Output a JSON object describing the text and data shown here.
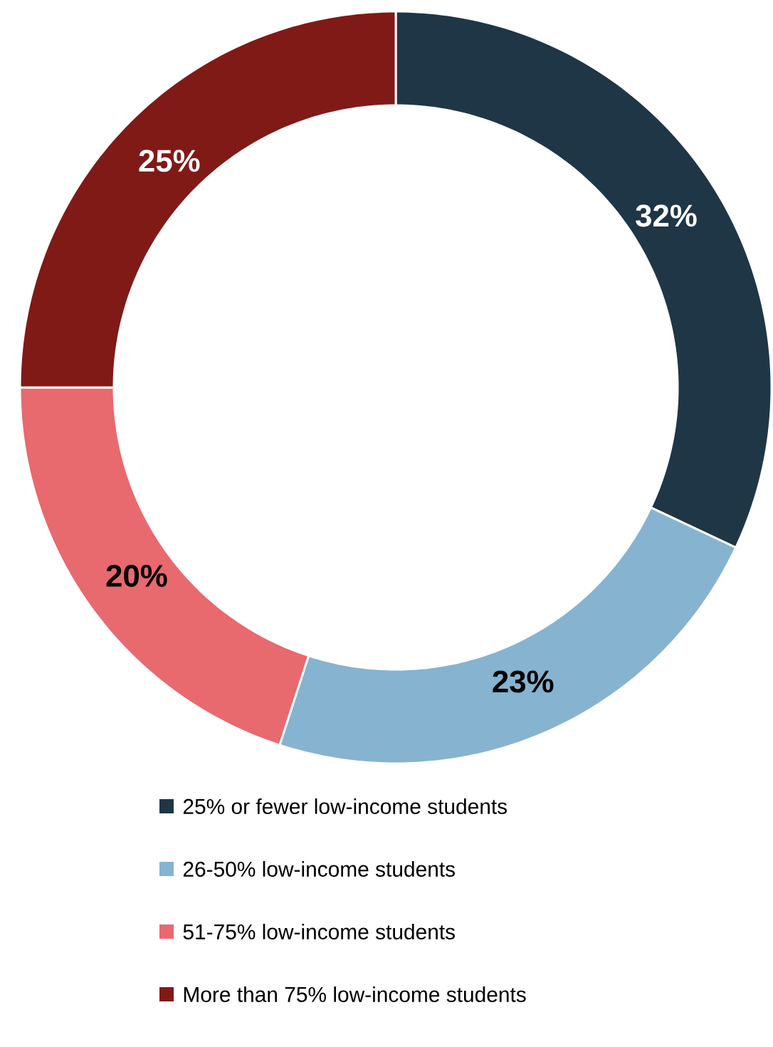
{
  "chart_data": {
    "type": "donut",
    "categories": [
      "25% or fewer low-income students",
      "26-50% low-income students",
      "51-75% low-income students",
      "More than 75% low-income students"
    ],
    "values": [
      32,
      23,
      20,
      25
    ],
    "colors": [
      "#1f3646",
      "#86b3cf",
      "#e8696e",
      "#7f1a17"
    ],
    "value_labels": [
      "32%",
      "23%",
      "20%",
      "25%"
    ],
    "legend": "bottom"
  }
}
